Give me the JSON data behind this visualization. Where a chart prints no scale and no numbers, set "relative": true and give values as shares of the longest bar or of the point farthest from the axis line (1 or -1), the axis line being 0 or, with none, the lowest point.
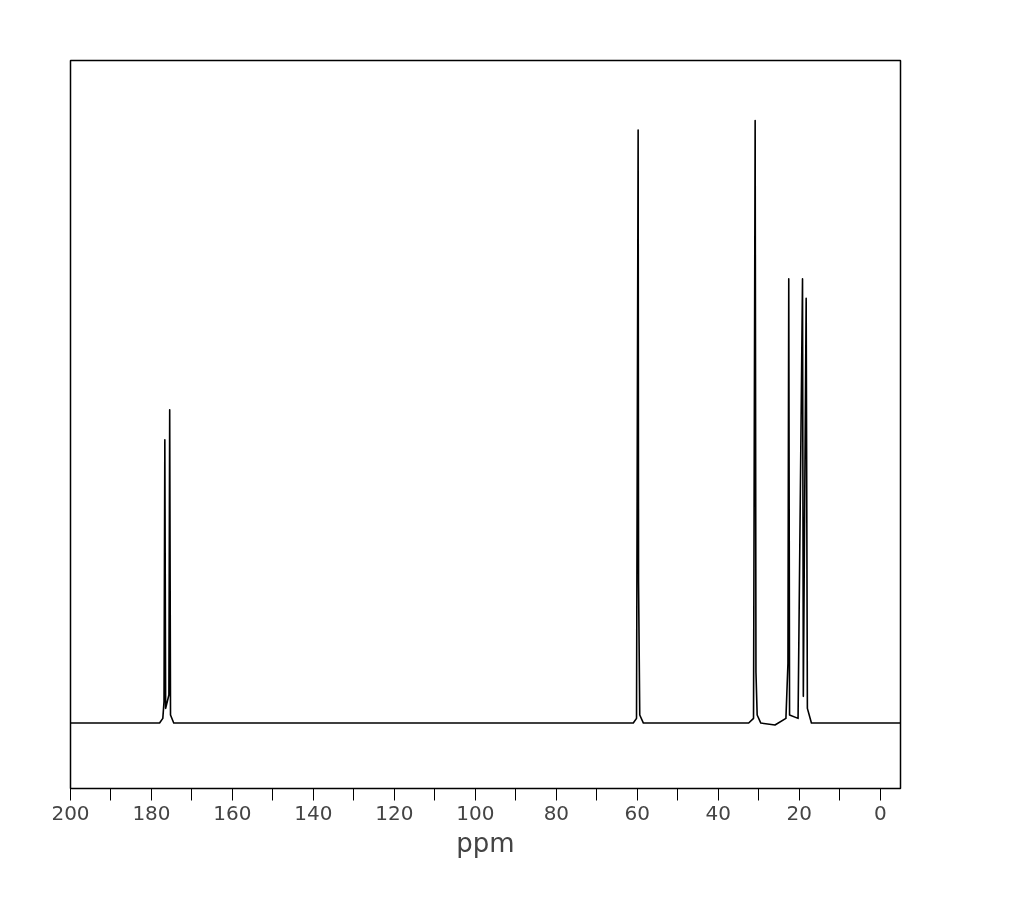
{
  "chart_data": {
    "type": "line",
    "relative": true,
    "xlabel": "ppm",
    "x": [
      200,
      178,
      177.2,
      176.9,
      176.7,
      176.5,
      175.7,
      175.5,
      175.3,
      174.5,
      61,
      60.2,
      59.8,
      59.7,
      59.4,
      58.5,
      32.5,
      31.3,
      30.9,
      30.7,
      30.4,
      29.5,
      26,
      23.3,
      22.8,
      22.6,
      22.4,
      20.3,
      19.2,
      19.0,
      18.3,
      18.0,
      17.0,
      -5
    ],
    "series": [
      {
        "color": "#000000",
        "values": [
          0.098,
          0.098,
          0.105,
          0.13,
          0.522,
          0.12,
          0.14,
          0.567,
          0.11,
          0.098,
          0.098,
          0.105,
          0.986,
          0.309,
          0.11,
          0.098,
          0.098,
          0.105,
          1.0,
          0.174,
          0.11,
          0.098,
          0.095,
          0.105,
          0.187,
          0.763,
          0.11,
          0.105,
          0.763,
          0.138,
          0.734,
          0.12,
          0.098,
          0.098
        ]
      }
    ],
    "xlim": [
      200,
      -5
    ],
    "xticks": [
      200,
      {
        "value": 190,
        "label": null
      },
      180,
      {
        "value": 170,
        "label": null
      },
      160,
      {
        "value": 150,
        "label": null
      },
      140,
      {
        "value": 130,
        "label": null
      },
      120,
      {
        "value": 110,
        "label": null
      },
      100,
      {
        "value": 90,
        "label": null
      },
      80,
      {
        "value": 70,
        "label": null
      },
      60,
      {
        "value": 50,
        "label": null
      },
      40,
      {
        "value": 30,
        "label": null
      },
      20,
      {
        "value": 10,
        "label": null
      },
      0
    ],
    "tick_labels": "x",
    "line_style": "solid"
  }
}
